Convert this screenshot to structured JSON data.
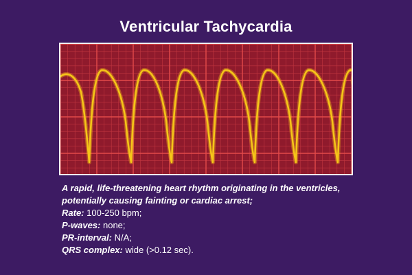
{
  "title": "Ventricular Tachycardia",
  "colors": {
    "background": "#3d1b63",
    "ecg_paper": "#8f1a2c",
    "grid_minor": "#c2363f",
    "grid_major": "#e44a4a",
    "waveform": "#f5c518",
    "text": "#ffffff"
  },
  "description": {
    "intro_line1": "A rapid, life-threatening heart rhythm originating in the ventricles,",
    "intro_line2": "potentially causing fainting or cardiac arrest;",
    "facts": [
      {
        "key": "Rate:",
        "value": " 100-250 bpm;"
      },
      {
        "key": "P-waves:",
        "value": " none;"
      },
      {
        "key": "PR-interval:",
        "value": " N/A;"
      },
      {
        "key": "QRS complex:",
        "value": " wide (>0.12 sec)."
      }
    ]
  }
}
